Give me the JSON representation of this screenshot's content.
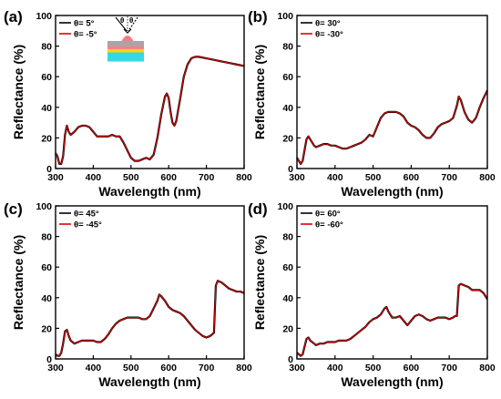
{
  "figure": {
    "background": "#ffffff"
  },
  "chart_data": [
    {
      "type": "line",
      "panel_label": "(a)",
      "xlabel": "Wavelength (nm)",
      "ylabel": "Reflectance (%)",
      "xlim": [
        300,
        800
      ],
      "ylim": [
        0,
        100
      ],
      "xticks": [
        300,
        400,
        500,
        600,
        700,
        800
      ],
      "yticks": [
        0,
        20,
        40,
        60,
        80,
        100
      ],
      "legend_position": "top-left",
      "inset": "schematic-of-illuminated-nanostructure",
      "inset_text": [
        "θ",
        "θ"
      ],
      "x": [
        300,
        305,
        310,
        315,
        320,
        325,
        330,
        335,
        340,
        345,
        350,
        360,
        370,
        380,
        390,
        400,
        410,
        420,
        430,
        440,
        450,
        460,
        470,
        480,
        490,
        500,
        510,
        520,
        530,
        540,
        550,
        560,
        570,
        580,
        590,
        595,
        600,
        605,
        610,
        615,
        620,
        630,
        640,
        650,
        660,
        670,
        680,
        700,
        720,
        740,
        760,
        780,
        800
      ],
      "series": [
        {
          "name": "θ= 5°",
          "color": "#000000",
          "values": [
            10,
            8,
            3,
            3,
            8,
            22,
            28,
            24,
            22,
            23,
            24,
            27,
            28,
            28,
            27,
            24,
            21,
            21,
            21,
            21,
            22,
            21,
            21,
            17,
            12,
            7,
            5,
            5,
            6,
            7,
            6,
            9,
            20,
            35,
            47,
            49,
            46,
            37,
            30,
            28,
            31,
            45,
            60,
            68,
            72,
            73,
            73,
            72,
            71,
            70,
            69,
            68,
            67
          ]
        },
        {
          "name": "θ= -5°",
          "color": "#e00000",
          "values": [
            10,
            8,
            3,
            3,
            8,
            22,
            28,
            24,
            22,
            23,
            24,
            27,
            28,
            28,
            27,
            24,
            21,
            21,
            21,
            21,
            22,
            21,
            21,
            17,
            12,
            7,
            5,
            5,
            6,
            7,
            6,
            9,
            20,
            35,
            47,
            49,
            46,
            37,
            30,
            28,
            31,
            45,
            60,
            68,
            72,
            73,
            73,
            72,
            71,
            70,
            69,
            68,
            67
          ]
        }
      ]
    },
    {
      "type": "line",
      "panel_label": "(b)",
      "xlabel": "Wavelength (nm)",
      "ylabel": "Reflectance (%)",
      "xlim": [
        300,
        800
      ],
      "ylim": [
        0,
        100
      ],
      "xticks": [
        300,
        400,
        500,
        600,
        700,
        800
      ],
      "yticks": [
        0,
        20,
        40,
        60,
        80,
        100
      ],
      "legend_position": "top-left",
      "x": [
        300,
        305,
        310,
        315,
        320,
        325,
        330,
        335,
        340,
        345,
        350,
        360,
        370,
        380,
        390,
        400,
        410,
        420,
        430,
        440,
        450,
        460,
        470,
        480,
        490,
        500,
        510,
        520,
        530,
        540,
        550,
        560,
        570,
        580,
        590,
        600,
        610,
        620,
        630,
        640,
        650,
        660,
        670,
        680,
        690,
        700,
        710,
        720,
        725,
        730,
        740,
        750,
        760,
        770,
        780,
        790,
        800
      ],
      "series": [
        {
          "name": "θ= 30°",
          "color": "#000000",
          "values": [
            7,
            5,
            3,
            5,
            12,
            19,
            21,
            19,
            17,
            15,
            14,
            15,
            16,
            16,
            15,
            15,
            14,
            13,
            13,
            14,
            15,
            16,
            17,
            19,
            22,
            21,
            27,
            33,
            36,
            37,
            37,
            37,
            36,
            34,
            30,
            28,
            27,
            25,
            22,
            20,
            20,
            23,
            27,
            29,
            30,
            31,
            33,
            41,
            47,
            45,
            37,
            32,
            30,
            33,
            40,
            46,
            51
          ]
        },
        {
          "name": "θ= -30°",
          "color": "#e00000",
          "values": [
            7,
            5,
            3,
            5,
            12,
            19,
            21,
            19,
            17,
            15,
            14,
            15,
            16,
            16,
            15,
            15,
            14,
            13,
            13,
            14,
            15,
            16,
            17,
            19,
            22,
            21,
            27,
            33,
            36,
            37,
            37,
            37,
            36,
            34,
            30,
            28,
            27,
            25,
            22,
            20,
            20,
            23,
            27,
            29,
            30,
            31,
            33,
            41,
            47,
            45,
            37,
            32,
            30,
            33,
            40,
            46,
            51
          ]
        }
      ]
    },
    {
      "type": "line",
      "panel_label": "(c)",
      "xlabel": "Wavelength (nm)",
      "ylabel": "Reflectance (%)",
      "xlim": [
        300,
        800
      ],
      "ylim": [
        0,
        100
      ],
      "xticks": [
        300,
        400,
        500,
        600,
        700,
        800
      ],
      "yticks": [
        0,
        20,
        40,
        60,
        80,
        100
      ],
      "legend_position": "top-left",
      "x": [
        300,
        305,
        310,
        315,
        320,
        325,
        330,
        335,
        340,
        345,
        350,
        360,
        370,
        380,
        390,
        400,
        410,
        420,
        430,
        440,
        450,
        460,
        470,
        480,
        490,
        500,
        510,
        520,
        530,
        540,
        550,
        560,
        570,
        575,
        580,
        590,
        600,
        610,
        620,
        630,
        640,
        650,
        660,
        670,
        680,
        690,
        700,
        710,
        715,
        720,
        725,
        730,
        740,
        750,
        760,
        770,
        780,
        790,
        800
      ],
      "series": [
        {
          "name": "θ= 45°",
          "color": "#000000",
          "values": [
            3,
            2,
            2,
            4,
            10,
            18,
            19,
            15,
            12,
            11,
            10,
            11,
            12,
            12,
            12,
            12,
            11,
            11,
            13,
            16,
            20,
            23,
            25,
            26,
            27,
            27,
            27,
            27,
            26,
            26,
            28,
            33,
            38,
            42,
            41,
            38,
            34,
            32,
            31,
            30,
            28,
            25,
            22,
            19,
            17,
            15,
            14,
            15,
            16,
            17,
            48,
            51,
            50,
            48,
            46,
            45,
            44,
            44,
            43
          ]
        },
        {
          "name": "θ= -45°",
          "color": "#e00000",
          "values": [
            3,
            2,
            2,
            4,
            10,
            18,
            19,
            15,
            12,
            11,
            10,
            11,
            12,
            12,
            12,
            12,
            11,
            11,
            13,
            16,
            20,
            23,
            25,
            26,
            27,
            27,
            27,
            27,
            26,
            26,
            28,
            33,
            38,
            42,
            41,
            38,
            34,
            32,
            31,
            30,
            28,
            25,
            22,
            19,
            17,
            15,
            14,
            15,
            16,
            17,
            48,
            51,
            50,
            48,
            46,
            45,
            44,
            44,
            43
          ]
        }
      ]
    },
    {
      "type": "line",
      "panel_label": "(d)",
      "xlabel": "Wavelength (nm)",
      "ylabel": "Reflectance (%)",
      "xlim": [
        300,
        800
      ],
      "ylim": [
        0,
        100
      ],
      "xticks": [
        300,
        400,
        500,
        600,
        700,
        800
      ],
      "yticks": [
        0,
        20,
        40,
        60,
        80,
        100
      ],
      "legend_position": "top-left",
      "x": [
        300,
        305,
        310,
        315,
        320,
        325,
        330,
        335,
        340,
        345,
        350,
        360,
        370,
        380,
        390,
        400,
        410,
        420,
        430,
        440,
        450,
        460,
        470,
        480,
        490,
        500,
        510,
        520,
        530,
        535,
        540,
        550,
        560,
        570,
        580,
        590,
        600,
        610,
        620,
        630,
        640,
        650,
        660,
        670,
        680,
        690,
        700,
        710,
        715,
        720,
        725,
        730,
        740,
        750,
        760,
        770,
        780,
        790,
        800
      ],
      "series": [
        {
          "name": "θ= 60°",
          "color": "#000000",
          "values": [
            4,
            3,
            2,
            3,
            8,
            13,
            14,
            12,
            11,
            10,
            9,
            10,
            10,
            11,
            11,
            11,
            12,
            12,
            12,
            13,
            15,
            17,
            19,
            21,
            24,
            26,
            27,
            29,
            33,
            34,
            31,
            27,
            27,
            28,
            25,
            22,
            25,
            28,
            29,
            28,
            26,
            25,
            26,
            27,
            27,
            27,
            26,
            27,
            28,
            28,
            48,
            49,
            48,
            47,
            45,
            45,
            45,
            43,
            39
          ]
        },
        {
          "name": "θ= -60°",
          "color": "#e00000",
          "values": [
            4,
            3,
            2,
            3,
            8,
            13,
            14,
            12,
            11,
            10,
            9,
            10,
            10,
            11,
            11,
            11,
            12,
            12,
            12,
            13,
            15,
            17,
            19,
            21,
            24,
            26,
            27,
            29,
            33,
            34,
            31,
            27,
            27,
            28,
            25,
            22,
            25,
            28,
            29,
            28,
            26,
            25,
            26,
            27,
            27,
            27,
            26,
            27,
            28,
            28,
            48,
            49,
            48,
            47,
            45,
            45,
            45,
            43,
            39
          ]
        }
      ]
    }
  ]
}
